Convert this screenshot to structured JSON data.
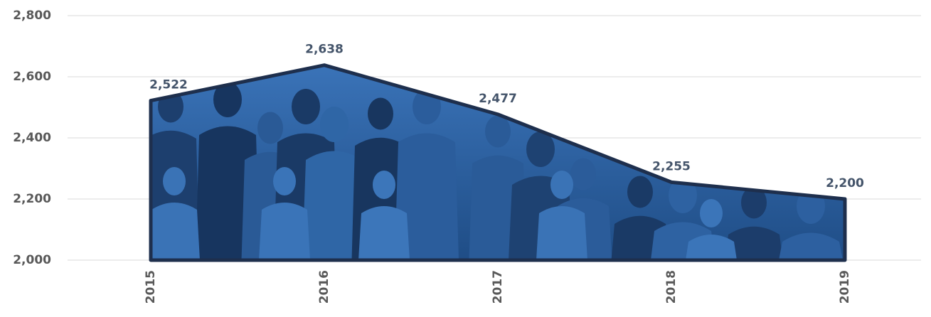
{
  "chart_data": {
    "type": "area",
    "categories": [
      "2015",
      "2016",
      "2017",
      "2018",
      "2019"
    ],
    "values": [
      2522,
      2638,
      2477,
      2255,
      2200
    ],
    "value_labels": [
      "2,522",
      "2,638",
      "2,477",
      "2,255",
      "2,200"
    ],
    "color": "#2e5f9e",
    "ylim": [
      2000,
      2800
    ],
    "yticks": [
      {
        "value": 2000,
        "label": "2,000"
      },
      {
        "value": 2200,
        "label": "2,200"
      },
      {
        "value": 2400,
        "label": "2,400"
      },
      {
        "value": 2600,
        "label": "2,600"
      },
      {
        "value": 2800,
        "label": "2,800"
      }
    ],
    "grid": true
  }
}
